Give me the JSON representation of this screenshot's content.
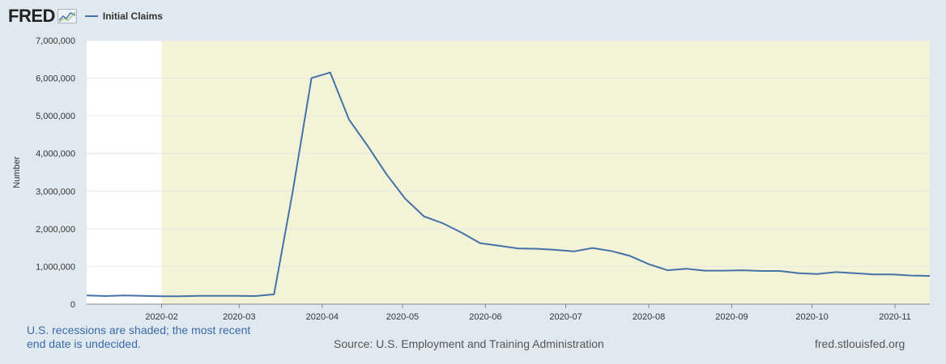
{
  "header": {
    "logo_text": "FRED",
    "legend_label": "Initial Claims"
  },
  "colors": {
    "background": "#e1e9f0",
    "plot_area": "#ffffff",
    "recession": "#f3f3d8",
    "series": "#4572a7",
    "grid": "#e6e6e6"
  },
  "footer": {
    "note": "U.S. recessions are shaded; the most recent end date is undecided.",
    "source": "Source: U.S. Employment and Training Administration",
    "site": "fred.stlouisfed.org"
  },
  "chart_data": {
    "type": "line",
    "ylabel": "Number",
    "ylim": [
      0,
      7000000
    ],
    "yticks": [
      0,
      1000000,
      2000000,
      3000000,
      4000000,
      5000000,
      6000000,
      7000000
    ],
    "ytick_labels": [
      "0",
      "1,000,000",
      "2,000,000",
      "3,000,000",
      "4,000,000",
      "5,000,000",
      "6,000,000",
      "7,000,000"
    ],
    "xlim": [
      "2020-01-04",
      "2020-11-14"
    ],
    "xticks": [
      "2020-02-01",
      "2020-03-01",
      "2020-04-01",
      "2020-05-01",
      "2020-06-01",
      "2020-07-01",
      "2020-08-01",
      "2020-09-01",
      "2020-10-01",
      "2020-11-01"
    ],
    "xtick_labels": [
      "2020-02",
      "2020-03",
      "2020-04",
      "2020-05",
      "2020-06",
      "2020-07",
      "2020-08",
      "2020-09",
      "2020-10",
      "2020-11"
    ],
    "recession_start": "2020-02-01",
    "grid": true,
    "series": [
      {
        "name": "Initial Claims",
        "x": [
          "2020-01-04",
          "2020-01-11",
          "2020-01-18",
          "2020-01-25",
          "2020-02-01",
          "2020-02-08",
          "2020-02-15",
          "2020-02-22",
          "2020-02-29",
          "2020-03-07",
          "2020-03-14",
          "2020-03-21",
          "2020-03-28",
          "2020-04-04",
          "2020-04-11",
          "2020-04-18",
          "2020-04-25",
          "2020-05-02",
          "2020-05-09",
          "2020-05-16",
          "2020-05-23",
          "2020-05-30",
          "2020-06-06",
          "2020-06-13",
          "2020-06-20",
          "2020-06-27",
          "2020-07-04",
          "2020-07-11",
          "2020-07-18",
          "2020-07-25",
          "2020-08-01",
          "2020-08-08",
          "2020-08-15",
          "2020-08-22",
          "2020-08-29",
          "2020-09-05",
          "2020-09-12",
          "2020-09-19",
          "2020-09-26",
          "2020-10-03",
          "2020-10-10",
          "2020-10-17",
          "2020-10-24",
          "2020-10-31",
          "2020-11-07",
          "2020-11-14"
        ],
        "values": [
          230000,
          215000,
          230000,
          220000,
          210000,
          210000,
          220000,
          220000,
          220000,
          215000,
          260000,
          3000000,
          6000000,
          6150000,
          4900000,
          4200000,
          3450000,
          2800000,
          2330000,
          2150000,
          1900000,
          1620000,
          1550000,
          1480000,
          1470000,
          1440000,
          1400000,
          1490000,
          1410000,
          1280000,
          1060000,
          900000,
          940000,
          890000,
          890000,
          900000,
          880000,
          880000,
          820000,
          800000,
          850000,
          820000,
          790000,
          790000,
          760000,
          750000
        ]
      }
    ]
  }
}
